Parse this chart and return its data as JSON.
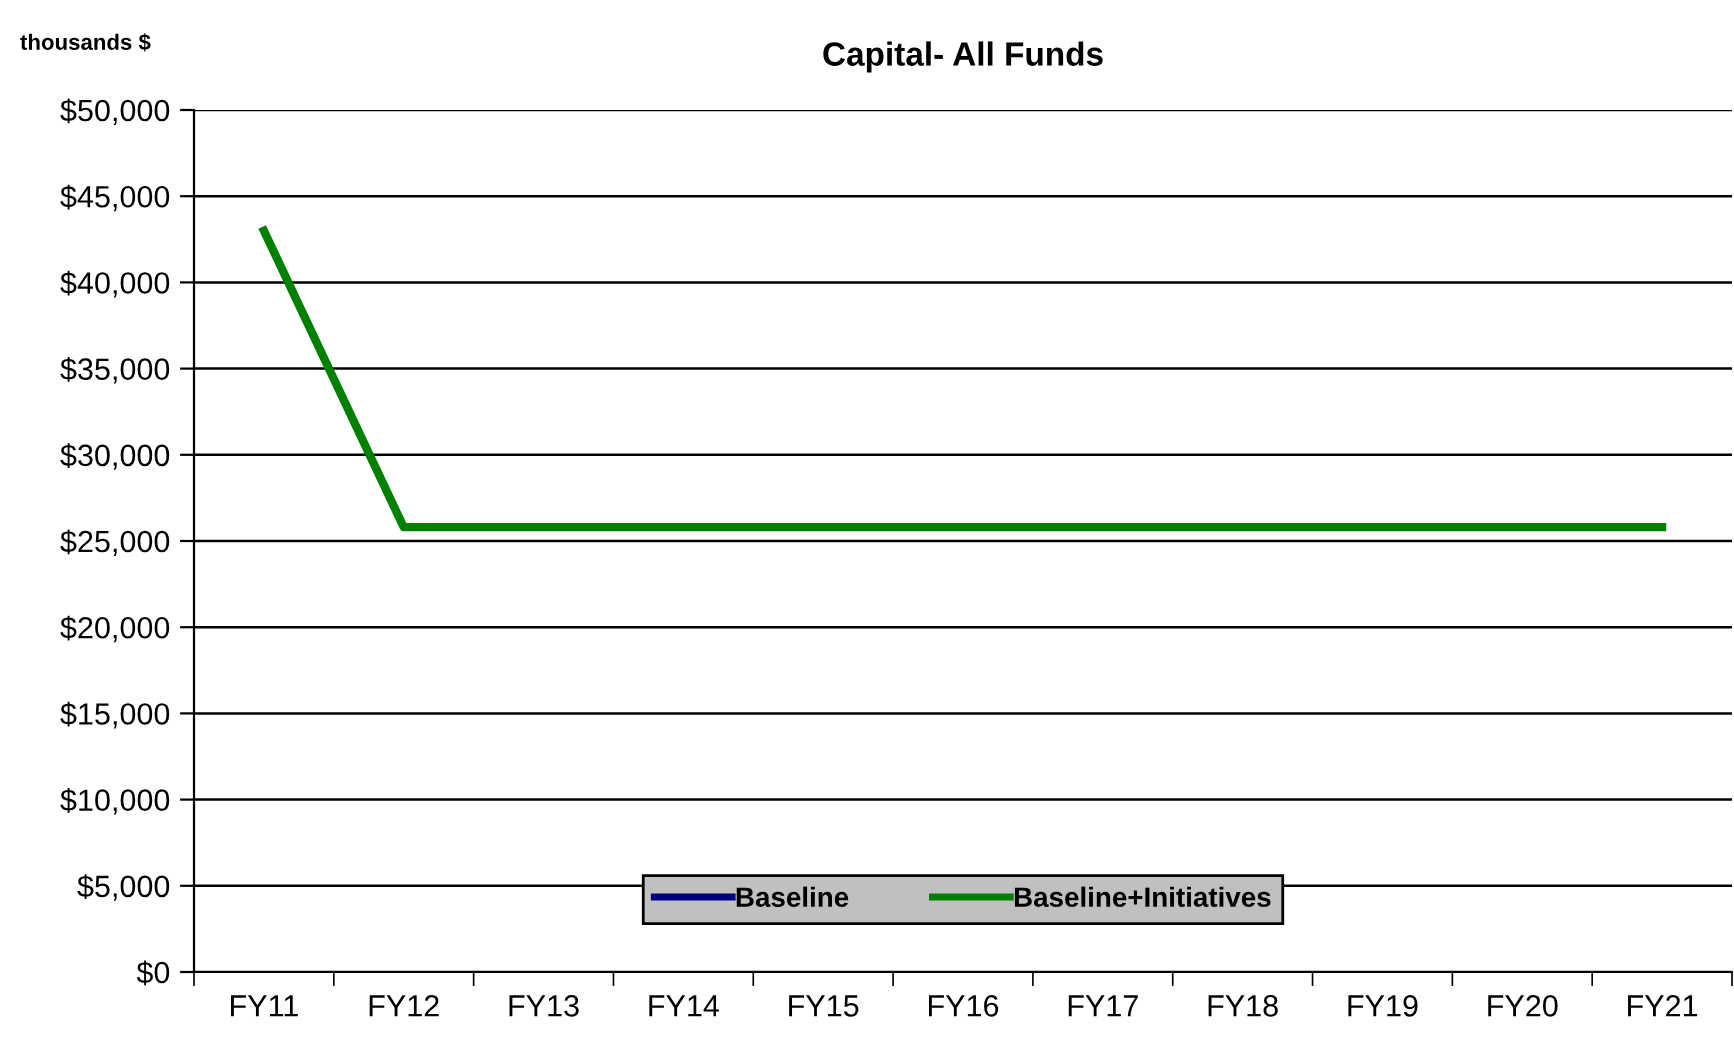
{
  "chart_data": {
    "type": "line",
    "title": "Capital- All Funds",
    "ylabel": "thousands $",
    "categories": [
      "FY11",
      "FY12",
      "FY13",
      "FY14",
      "FY15",
      "FY16",
      "FY17",
      "FY18",
      "FY19",
      "FY20",
      "FY21"
    ],
    "series": [
      {
        "name": "Baseline",
        "color": "#000080",
        "values": [
          null,
          null,
          null,
          null,
          null,
          null,
          null,
          null,
          null,
          null,
          null
        ]
      },
      {
        "name": "Baseline+Initiatives",
        "color": "#008000",
        "values": [
          43000,
          25800,
          25800,
          25800,
          25800,
          25800,
          25800,
          25800,
          25800,
          25800,
          25800
        ]
      }
    ],
    "ylim": [
      0,
      50000
    ],
    "yticks": [
      {
        "value": 0,
        "label": "$0"
      },
      {
        "value": 5000,
        "label": "$5,000"
      },
      {
        "value": 10000,
        "label": "$10,000"
      },
      {
        "value": 15000,
        "label": "$15,000"
      },
      {
        "value": 20000,
        "label": "$20,000"
      },
      {
        "value": 25000,
        "label": "$25,000"
      },
      {
        "value": 30000,
        "label": "$30,000"
      },
      {
        "value": 35000,
        "label": "$35,000"
      },
      {
        "value": 40000,
        "label": "$40,000"
      },
      {
        "value": 45000,
        "label": "$45,000"
      },
      {
        "value": 50000,
        "label": "$50,000"
      }
    ],
    "grid": "y",
    "legend": "bottom",
    "marker": "none",
    "line_style": "solid"
  }
}
